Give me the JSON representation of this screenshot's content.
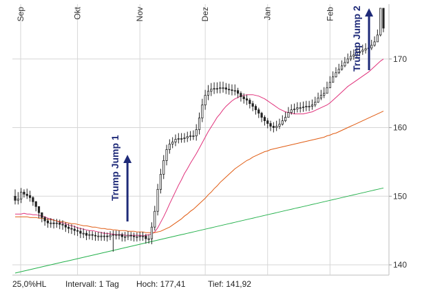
{
  "chart_data": {
    "type": "candlestick",
    "x_labels": [
      "Sep",
      "Okt",
      "Nov",
      "Dez",
      "Jan",
      "Feb"
    ],
    "y_ticks": [
      140,
      150,
      160,
      170
    ],
    "ylim": [
      138.5,
      178
    ],
    "grid": true,
    "num_sessions": 125,
    "candles": {
      "open": [
        150.0,
        149.4,
        149.6,
        150.6,
        150.3,
        150.1,
        149.8,
        149.2,
        148.5,
        147.6,
        146.9,
        146.4,
        146.1,
        146.1,
        146.0,
        146.1,
        145.9,
        145.8,
        145.5,
        145.3,
        145.2,
        145.0,
        144.9,
        144.6,
        144.6,
        144.3,
        144.4,
        144.3,
        144.2,
        144.2,
        144.2,
        144.2,
        144.1,
        144.3,
        144.4,
        144.4,
        144.4,
        144.1,
        144.1,
        144.3,
        144.2,
        144.1,
        144.1,
        144.2,
        144.2,
        143.8,
        143.8,
        145.5,
        147.8,
        151.0,
        153.2,
        155.2,
        156.8,
        157.6,
        157.9,
        158.3,
        158.4,
        158.4,
        158.5,
        158.7,
        158.8,
        158.8,
        159.7,
        161.4,
        163.3,
        164.7,
        165.3,
        165.6,
        165.7,
        165.7,
        165.8,
        165.8,
        165.6,
        165.5,
        165.4,
        165.4,
        165.0,
        164.5,
        164.2,
        164.0,
        163.5,
        163.1,
        162.6,
        162.1,
        161.5,
        161.0,
        160.6,
        160.2,
        160.0,
        160.2,
        160.5,
        161.0,
        161.5,
        162.2,
        162.6,
        162.7,
        162.9,
        162.9,
        163.0,
        163.1,
        163.1,
        163.3,
        163.7,
        164.3,
        164.7,
        165.0,
        165.8,
        166.6,
        167.4,
        168.0,
        168.5,
        169.0,
        169.5,
        170.0,
        170.4,
        170.6,
        170.9,
        171.1,
        171.3,
        171.5,
        171.6,
        172.0,
        172.5,
        173.5,
        177.4
      ],
      "close": [
        149.4,
        149.6,
        150.6,
        150.3,
        150.1,
        149.8,
        149.2,
        148.5,
        147.6,
        146.9,
        146.4,
        146.1,
        146.1,
        146.0,
        146.1,
        145.9,
        145.8,
        145.5,
        145.3,
        145.2,
        145.0,
        144.9,
        144.6,
        144.6,
        144.3,
        144.4,
        144.3,
        144.2,
        144.2,
        144.2,
        144.2,
        144.1,
        144.3,
        144.4,
        144.4,
        144.4,
        144.1,
        144.1,
        144.3,
        144.2,
        144.1,
        144.1,
        144.2,
        144.2,
        143.8,
        143.8,
        145.5,
        147.8,
        151.0,
        153.2,
        155.2,
        156.8,
        157.6,
        157.9,
        158.3,
        158.4,
        158.4,
        158.5,
        158.7,
        158.8,
        158.8,
        159.7,
        161.4,
        163.3,
        164.7,
        165.3,
        165.6,
        165.7,
        165.7,
        165.8,
        165.8,
        165.6,
        165.5,
        165.4,
        165.4,
        165.0,
        164.5,
        164.2,
        164.0,
        163.5,
        163.1,
        162.6,
        162.1,
        161.5,
        161.0,
        160.6,
        160.2,
        160.0,
        160.2,
        160.5,
        161.0,
        161.5,
        162.2,
        162.6,
        162.7,
        162.9,
        162.9,
        163.0,
        163.1,
        163.1,
        163.3,
        163.7,
        164.3,
        164.7,
        165.0,
        165.8,
        166.6,
        167.4,
        168.0,
        168.5,
        169.0,
        169.5,
        170.0,
        170.4,
        170.6,
        170.9,
        171.1,
        171.3,
        171.5,
        171.6,
        172.0,
        172.5,
        173.5,
        177.4,
        174.5
      ],
      "high": [
        151.0,
        150.6,
        151.2,
        151.0,
        151.1,
        150.8,
        150.0,
        149.3,
        148.4,
        147.6,
        147.1,
        146.8,
        146.8,
        146.7,
        146.7,
        146.6,
        146.5,
        146.2,
        146.0,
        145.9,
        145.7,
        145.5,
        145.4,
        145.3,
        145.0,
        145.0,
        144.9,
        144.8,
        144.8,
        144.8,
        144.8,
        144.7,
        144.9,
        145.0,
        145.0,
        145.0,
        144.7,
        144.8,
        144.9,
        144.8,
        144.7,
        144.7,
        144.8,
        144.8,
        144.5,
        144.4,
        146.2,
        148.6,
        151.8,
        154.0,
        156.0,
        157.5,
        158.3,
        158.6,
        159.0,
        159.2,
        159.2,
        159.2,
        159.4,
        159.5,
        159.6,
        160.5,
        162.2,
        164.2,
        165.5,
        166.2,
        166.5,
        166.6,
        166.6,
        166.7,
        166.7,
        166.5,
        166.4,
        166.3,
        166.3,
        165.8,
        165.3,
        165.0,
        164.8,
        164.3,
        163.9,
        163.4,
        162.9,
        162.3,
        161.8,
        161.4,
        161.0,
        160.8,
        161.0,
        161.3,
        161.8,
        162.3,
        163.0,
        163.4,
        163.5,
        163.7,
        163.7,
        163.8,
        163.9,
        163.9,
        164.1,
        164.5,
        165.1,
        165.5,
        165.9,
        166.7,
        167.5,
        168.2,
        168.8,
        169.3,
        169.8,
        170.3,
        170.8,
        171.2,
        171.4,
        171.7,
        171.9,
        172.1,
        172.3,
        172.4,
        172.8,
        173.3,
        174.3,
        177.41,
        177.41
      ],
      "low": [
        148.8,
        148.8,
        149.0,
        149.8,
        149.6,
        149.2,
        148.6,
        147.8,
        146.8,
        146.2,
        145.7,
        145.4,
        145.4,
        145.3,
        145.4,
        145.2,
        145.1,
        144.8,
        144.6,
        144.5,
        144.3,
        144.2,
        143.9,
        143.9,
        143.6,
        143.7,
        143.6,
        143.5,
        143.5,
        143.5,
        143.5,
        143.4,
        143.6,
        141.92,
        143.7,
        143.7,
        143.4,
        143.4,
        143.6,
        143.5,
        143.4,
        143.4,
        143.5,
        143.5,
        143.1,
        143.1,
        143.0,
        145.0,
        147.2,
        150.4,
        152.5,
        154.5,
        156.2,
        157.0,
        157.3,
        157.7,
        157.8,
        157.8,
        157.9,
        158.1,
        158.2,
        158.1,
        159.0,
        160.8,
        162.6,
        164.0,
        164.6,
        164.9,
        165.0,
        165.0,
        165.1,
        164.9,
        164.8,
        164.7,
        164.7,
        164.3,
        163.8,
        163.5,
        163.3,
        162.8,
        162.4,
        161.9,
        161.4,
        160.8,
        160.3,
        159.9,
        159.5,
        159.3,
        159.5,
        159.8,
        160.3,
        160.8,
        161.5,
        161.9,
        162.0,
        162.2,
        162.2,
        162.3,
        162.4,
        162.4,
        162.6,
        163.0,
        163.6,
        164.0,
        164.3,
        165.1,
        165.9,
        166.7,
        167.3,
        167.8,
        168.3,
        168.8,
        169.3,
        169.7,
        169.9,
        170.2,
        170.4,
        170.6,
        170.8,
        170.9,
        171.3,
        171.8,
        172.8,
        173.3,
        173.9
      ]
    },
    "series": [
      {
        "color": "#e0307a",
        "values": [
          147.4,
          147.4,
          147.4,
          147.5,
          147.4,
          147.4,
          147.3,
          147.3,
          147.2,
          147.1,
          147.0,
          146.8,
          146.7,
          146.5,
          146.4,
          146.2,
          146.1,
          146.0,
          145.8,
          145.7,
          145.6,
          145.4,
          145.3,
          145.2,
          145.1,
          145.0,
          145.0,
          144.9,
          144.8,
          144.7,
          144.6,
          144.6,
          144.5,
          144.5,
          144.4,
          144.4,
          144.4,
          144.3,
          144.3,
          144.3,
          144.3,
          144.3,
          144.3,
          144.2,
          144.3,
          144.4,
          144.5,
          144.8,
          145.4,
          146.2,
          147.0,
          147.9,
          148.9,
          149.8,
          150.7,
          151.6,
          152.4,
          153.3,
          154.0,
          154.8,
          155.5,
          156.2,
          157.0,
          157.8,
          158.6,
          159.4,
          160.1,
          160.8,
          161.5,
          162.0,
          162.6,
          163.1,
          163.5,
          163.9,
          164.2,
          164.4,
          164.6,
          164.7,
          164.8,
          164.8,
          164.8,
          164.7,
          164.6,
          164.4,
          164.2,
          163.9,
          163.6,
          163.3,
          163.0,
          162.7,
          162.5,
          162.3,
          162.2,
          162.1,
          162.0,
          162.0,
          162.0,
          162.0,
          162.1,
          162.2,
          162.3,
          162.5,
          162.7,
          162.9,
          163.1,
          163.3,
          163.6,
          164.0,
          164.4,
          164.8,
          165.2,
          165.6,
          166.0,
          166.3,
          166.6,
          166.9,
          167.2,
          167.5,
          167.8,
          168.1,
          168.5,
          168.9,
          169.3,
          169.7,
          170.0
        ],
        "name": ""
      },
      {
        "color": "#e05a10",
        "values": [
          147.0,
          147.0,
          147.0,
          147.0,
          147.0,
          146.9,
          146.9,
          146.9,
          146.8,
          146.8,
          146.7,
          146.6,
          146.6,
          146.5,
          146.4,
          146.3,
          146.3,
          146.2,
          146.1,
          146.0,
          146.0,
          145.9,
          145.8,
          145.7,
          145.7,
          145.6,
          145.5,
          145.5,
          145.4,
          145.3,
          145.3,
          145.2,
          145.2,
          145.1,
          145.1,
          145.0,
          145.0,
          145.0,
          144.9,
          144.9,
          144.9,
          144.8,
          144.8,
          144.8,
          144.7,
          144.7,
          144.7,
          144.7,
          144.8,
          144.9,
          145.1,
          145.3,
          145.5,
          145.8,
          146.1,
          146.4,
          146.7,
          147.1,
          147.4,
          147.8,
          148.1,
          148.5,
          148.9,
          149.3,
          149.7,
          150.2,
          150.6,
          151.1,
          151.5,
          152.0,
          152.4,
          152.8,
          153.2,
          153.6,
          154.0,
          154.3,
          154.6,
          154.9,
          155.2,
          155.4,
          155.7,
          155.9,
          156.1,
          156.3,
          156.5,
          156.6,
          156.8,
          156.9,
          157.0,
          157.1,
          157.2,
          157.3,
          157.4,
          157.5,
          157.6,
          157.7,
          157.8,
          157.9,
          158.0,
          158.1,
          158.2,
          158.3,
          158.4,
          158.5,
          158.6,
          158.8,
          158.9,
          159.1,
          159.2,
          159.4,
          159.6,
          159.8,
          160.0,
          160.2,
          160.4,
          160.6,
          160.8,
          161.0,
          161.2,
          161.4,
          161.6,
          161.8,
          162.0,
          162.2,
          162.4
        ],
        "name": ""
      },
      {
        "color": "#22b04a",
        "values": [
          138.8,
          138.9,
          139.0,
          139.1,
          139.2,
          139.3,
          139.4,
          139.5,
          139.6,
          139.7,
          139.8,
          139.9,
          140.0,
          140.1,
          140.2,
          140.3,
          140.4,
          140.5,
          140.6,
          140.7,
          140.8,
          140.9,
          141.0,
          141.1,
          141.2,
          141.3,
          141.4,
          141.5,
          141.6,
          141.7,
          141.8,
          141.9,
          142.0,
          142.1,
          142.2,
          142.3,
          142.4,
          142.5,
          142.6,
          142.7,
          142.8,
          142.9,
          143.0,
          143.1,
          143.2,
          143.3,
          143.4,
          143.5,
          143.6,
          143.7,
          143.8,
          143.9,
          144.0,
          144.1,
          144.2,
          144.3,
          144.4,
          144.5,
          144.6,
          144.7,
          144.8,
          144.9,
          145.0,
          145.1,
          145.2,
          145.3,
          145.4,
          145.5,
          145.6,
          145.7,
          145.8,
          145.9,
          146.0,
          146.1,
          146.2,
          146.3,
          146.4,
          146.5,
          146.6,
          146.7,
          146.8,
          146.9,
          147.0,
          147.1,
          147.2,
          147.3,
          147.4,
          147.5,
          147.6,
          147.7,
          147.8,
          147.9,
          148.0,
          148.1,
          148.2,
          148.3,
          148.4,
          148.5,
          148.6,
          148.7,
          148.8,
          148.9,
          149.0,
          149.1,
          149.2,
          149.3,
          149.4,
          149.5,
          149.6,
          149.7,
          149.8,
          149.9,
          150.0,
          150.1,
          150.2,
          150.3,
          150.4,
          150.5,
          150.6,
          150.7,
          150.8,
          150.9,
          151.0,
          151.1,
          151.2
        ],
        "name": ""
      }
    ],
    "annotations": [
      {
        "text": "Trump Jump 1",
        "index": 45,
        "color": "#1e2a78"
      },
      {
        "text": "Trump Jump 2",
        "index": 121,
        "color": "#1e2a78"
      }
    ],
    "footer": {
      "hl": "25,0%HL",
      "interval": "Intervall: 1 Tag",
      "high": "Hoch:  177,41",
      "low": "Tief:  141,92"
    },
    "colors": {
      "candle": "#222222",
      "grid": "#d6d6d6",
      "axis_text": "#333333",
      "annotation": "#1e2a78"
    }
  }
}
